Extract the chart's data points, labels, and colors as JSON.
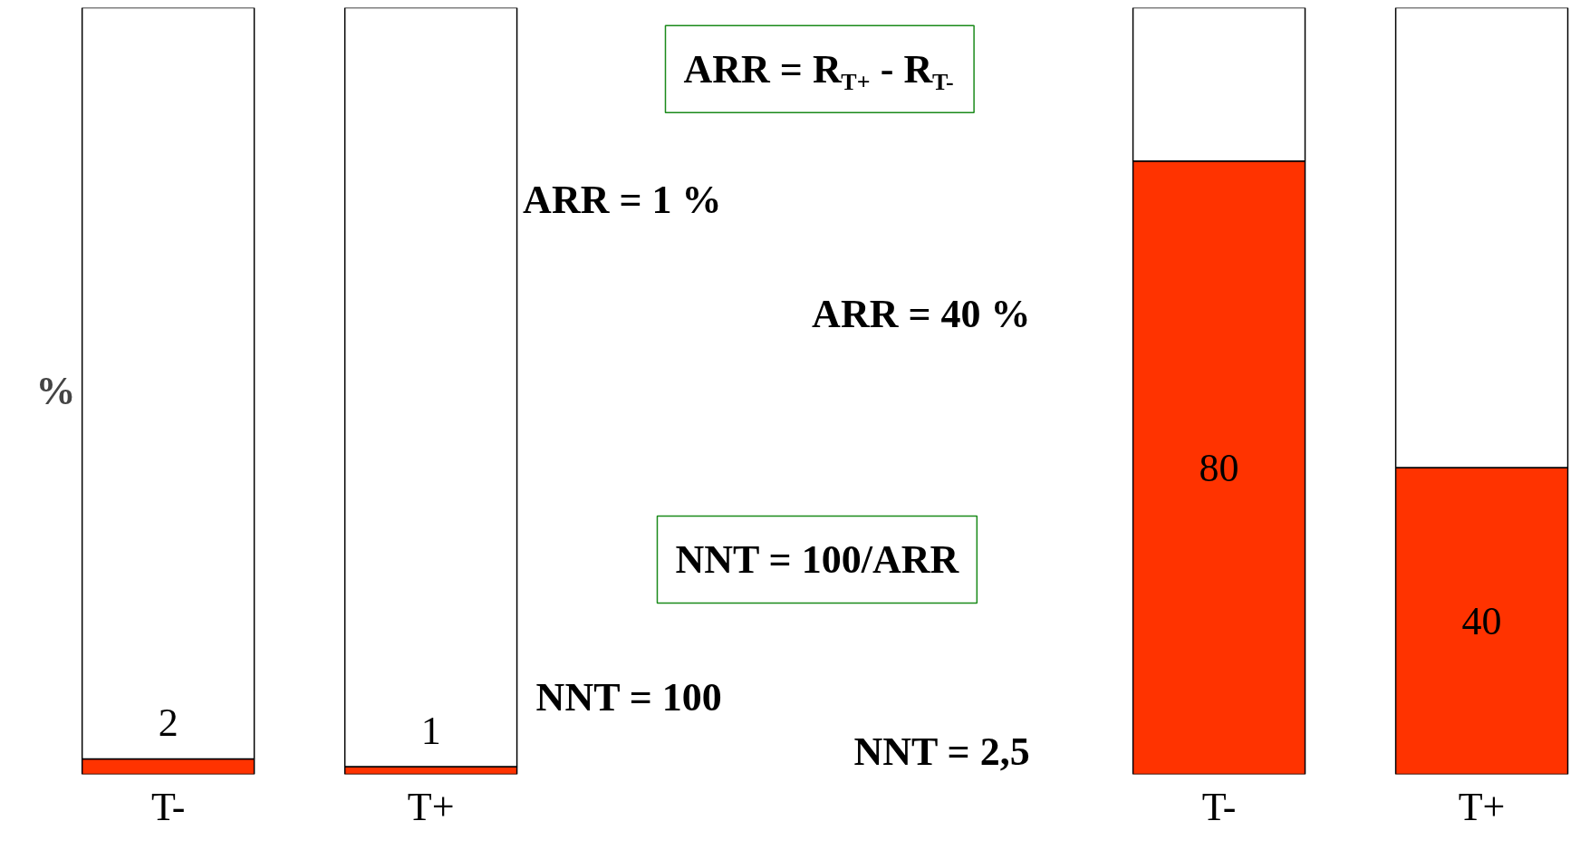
{
  "chart_data": {
    "type": "bar",
    "stacked": true,
    "ylabel": "%",
    "categories": [
      "T-",
      "T+",
      null,
      null,
      "T-",
      "T+"
    ],
    "series": [
      {
        "color": "#ff3300",
        "values": [
          2,
          1,
          null,
          null,
          80,
          40
        ],
        "value_labels": [
          "2",
          "1",
          null,
          null,
          "80",
          "40"
        ]
      },
      {
        "color": "#ffffff",
        "values": [
          98,
          99,
          null,
          null,
          20,
          60
        ]
      }
    ],
    "ylim": [
      0,
      100
    ],
    "tick_labels": "x",
    "annotations": [
      "ARR = R$_{T+}$ - R$_{T-}$",
      "ARR = 1 %",
      "ARR = 40 %",
      "NNT = 100/ARR",
      "NNT = 100",
      "NNT = 2,5"
    ]
  }
}
